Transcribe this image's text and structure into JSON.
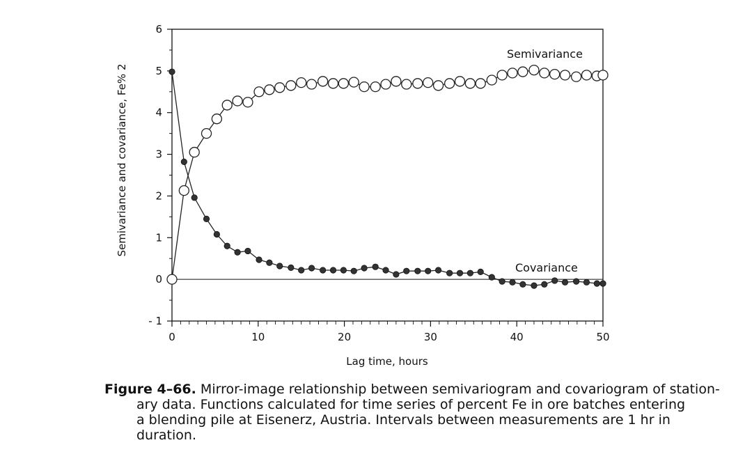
{
  "chart_data": {
    "type": "line",
    "xlabel": "Lag time, hours",
    "ylabel": "Semivariance and covariance, Fe% 2",
    "xlim": [
      0,
      50
    ],
    "ylim": [
      -1,
      6
    ],
    "x_ticks": [
      "0",
      "10",
      "20",
      "30",
      "40",
      "50"
    ],
    "y_ticks": [
      "- 1",
      "0",
      "1",
      "2",
      "3",
      "4",
      "5",
      "6"
    ],
    "grid": false,
    "zero_line": true,
    "series": [
      {
        "name": "Semivariance",
        "marker": "open-circle",
        "color": "#222222",
        "x": [
          0,
          1.4,
          2.6,
          4,
          5.2,
          6.4,
          7.6,
          8.8,
          10.1,
          11.3,
          12.5,
          13.8,
          15,
          16.2,
          17.5,
          18.7,
          19.9,
          21.1,
          22.3,
          23.6,
          24.8,
          26,
          27.2,
          28.5,
          29.7,
          30.9,
          32.2,
          33.4,
          34.6,
          35.8,
          37.1,
          38.3,
          39.5,
          40.7,
          42,
          43.2,
          44.4,
          45.6,
          46.9,
          48.1,
          49.3,
          50
        ],
        "values": [
          0,
          2.13,
          3.05,
          3.5,
          3.85,
          4.18,
          4.28,
          4.25,
          4.5,
          4.55,
          4.6,
          4.65,
          4.72,
          4.68,
          4.75,
          4.7,
          4.7,
          4.73,
          4.62,
          4.62,
          4.68,
          4.75,
          4.68,
          4.7,
          4.72,
          4.65,
          4.7,
          4.75,
          4.7,
          4.7,
          4.78,
          4.9,
          4.95,
          4.98,
          5.02,
          4.95,
          4.92,
          4.9,
          4.86,
          4.9,
          4.88,
          4.9
        ]
      },
      {
        "name": "Covariance",
        "marker": "filled-circle",
        "color": "#222222",
        "x": [
          0,
          1.4,
          2.6,
          4,
          5.2,
          6.4,
          7.6,
          8.8,
          10.1,
          11.3,
          12.5,
          13.8,
          15,
          16.2,
          17.5,
          18.7,
          19.9,
          21.1,
          22.3,
          23.6,
          24.8,
          26,
          27.2,
          28.5,
          29.7,
          30.9,
          32.2,
          33.4,
          34.6,
          35.8,
          37.1,
          38.3,
          39.5,
          40.7,
          42,
          43.2,
          44.4,
          45.6,
          46.9,
          48.1,
          49.3,
          50
        ],
        "values": [
          4.98,
          2.82,
          1.96,
          1.45,
          1.08,
          0.8,
          0.65,
          0.68,
          0.47,
          0.4,
          0.32,
          0.28,
          0.22,
          0.27,
          0.22,
          0.22,
          0.22,
          0.2,
          0.27,
          0.3,
          0.22,
          0.12,
          0.2,
          0.2,
          0.2,
          0.22,
          0.15,
          0.15,
          0.15,
          0.18,
          0.05,
          -0.05,
          -0.07,
          -0.12,
          -0.15,
          -0.12,
          -0.03,
          -0.07,
          -0.05,
          -0.07,
          -0.1,
          -0.1
        ]
      }
    ]
  },
  "caption": {
    "label": "Figure 4–66.",
    "lines": [
      "Mirror-image relationship between semivariogram and covariogram of station-",
      "ary data.  Functions calculated for time series of percent Fe in ore batches entering",
      "a blending pile at Eisenerz, Austria.  Intervals between measurements are 1 hr in",
      "duration."
    ]
  }
}
